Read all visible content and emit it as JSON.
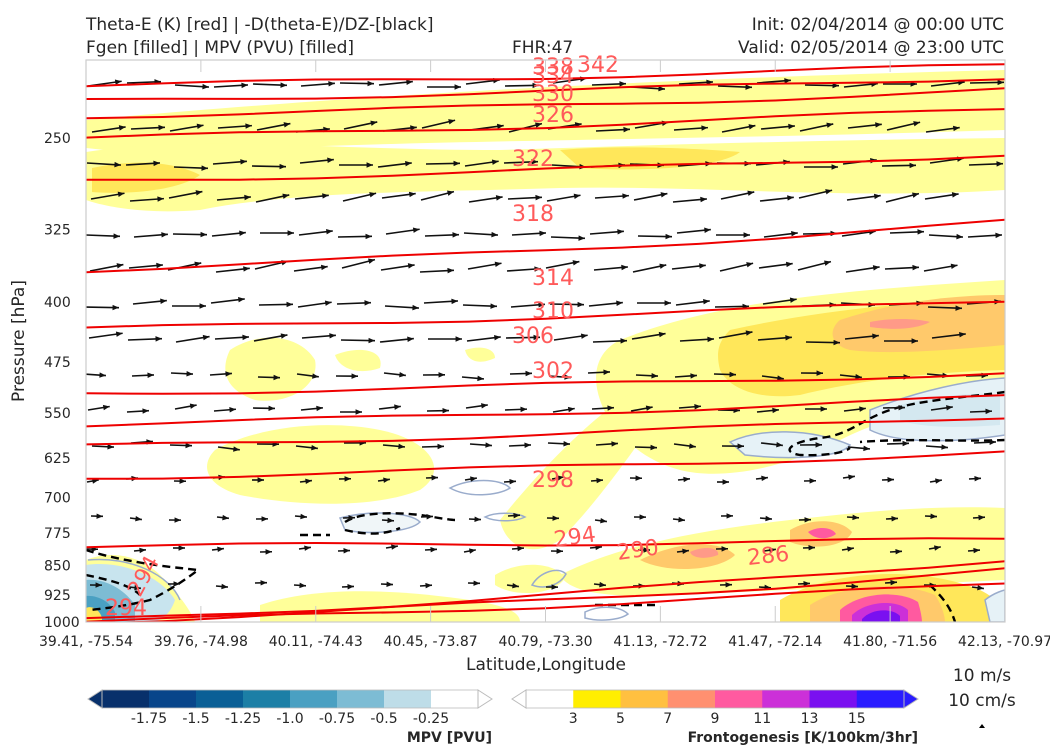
{
  "header": {
    "title_line1": "Theta-E (K) [red] | -D(theta-E)/DZ-[black]",
    "title_line2": "Fgen [filled] | MPV (PVU) [filled]",
    "fhr": "FHR:47",
    "init": "Init: 02/04/2014 @ 00:00 UTC",
    "valid": "Valid: 02/05/2014 @ 23:00 UTC"
  },
  "chart_data": {
    "type": "cross-section",
    "xlabel": "Latitude,Longitude",
    "ylabel": "Pressure [hPa]",
    "y_scale": "log-pressure",
    "ylim": [
      1000,
      200
    ],
    "x_ticks": [
      "39.41, -75.54",
      "39.76, -74.98",
      "40.11, -74.43",
      "40.45, -73.87",
      "40.79, -73.30",
      "41.13, -72.72",
      "41.47, -72.14",
      "41.80, -71.56",
      "42.13, -70.97"
    ],
    "y_ticks": [
      250,
      325,
      400,
      475,
      550,
      625,
      700,
      775,
      850,
      925,
      1000
    ],
    "theta_e_contours": [
      {
        "value": 342,
        "p_left": 215,
        "p_right": 203
      },
      {
        "value": 338,
        "p_left": 225,
        "p_right": 210
      },
      {
        "value": 334,
        "p_left": 235,
        "p_right": 218
      },
      {
        "value": 330,
        "p_left": 250,
        "p_right": 230
      },
      {
        "value": 326,
        "p_left": 283,
        "p_right": 262
      },
      {
        "value": 322,
        "p_left": 365,
        "p_right": 318
      },
      {
        "value": 318,
        "p_left": 432,
        "p_right": 398
      },
      {
        "value": 314,
        "p_left": 520,
        "p_right": 490
      },
      {
        "value": 310,
        "p_left": 568,
        "p_right": 525
      },
      {
        "value": 306,
        "p_left": 605,
        "p_right": 555
      },
      {
        "value": 302,
        "p_left": 662,
        "p_right": 615
      },
      {
        "value": 298,
        "p_left": 805,
        "p_right": 790
      },
      {
        "value": 294,
        "p_left": 995,
        "p_right": 835
      },
      {
        "value": 290,
        "p_left": 1000,
        "p_right": 862
      },
      {
        "value": 286,
        "p_left": 1000,
        "p_right": 895
      }
    ],
    "contour_labels": [
      "342",
      "338",
      "334",
      "330",
      "326",
      "322",
      "318",
      "314",
      "310",
      "306",
      "302",
      "298",
      "294",
      "290",
      "286",
      "294",
      "294"
    ],
    "colorbars": [
      {
        "title": "MPV [PVU]",
        "ticks": [
          "-1.75",
          "-1.5",
          "-1.25",
          "-1.0",
          "-0.75",
          "-0.5",
          "-0.25"
        ],
        "colors": [
          "#08306b",
          "#08458a",
          "#0a5f96",
          "#1c7fa6",
          "#4aa0c2",
          "#7dbcd4",
          "#bedde8",
          "#ffffff"
        ]
      },
      {
        "title": "Frontogenesis [K/100km/3hr]",
        "ticks": [
          "3",
          "5",
          "7",
          "9",
          "11",
          "13",
          "15"
        ],
        "colors": [
          "#ffffff",
          "#ffee00",
          "#ffc040",
          "#ff9070",
          "#ff5aa0",
          "#cc30d8",
          "#7a10f0",
          "#2a1cff"
        ]
      }
    ],
    "vector_keys": [
      "10 m/s",
      "10 cm/s"
    ]
  }
}
